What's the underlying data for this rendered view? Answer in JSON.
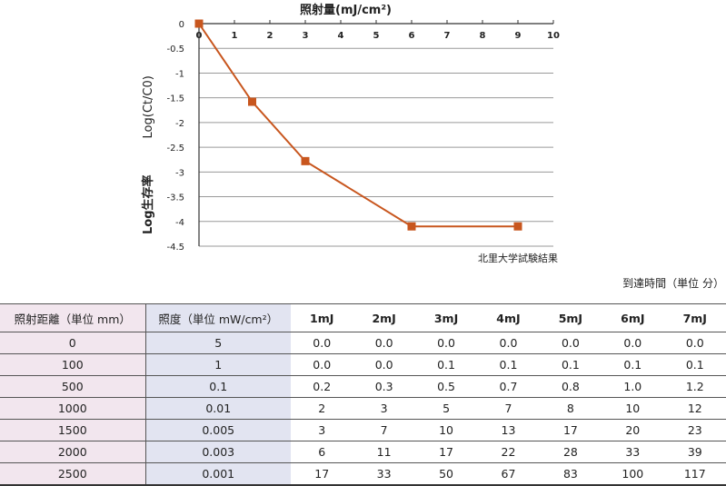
{
  "chart_data": {
    "type": "line",
    "title": "照射量(mJ/cm²)",
    "x_ticks": [
      "0",
      "1",
      "2",
      "3",
      "4",
      "5",
      "6",
      "7",
      "8",
      "9",
      "10"
    ],
    "y_ticks": [
      "0",
      "-0.5",
      "-1",
      "-1.5",
      "-2",
      "-2.5",
      "-3",
      "-3.5",
      "-4",
      "-4.5"
    ],
    "xlim": [
      0,
      10
    ],
    "ylim": [
      -4.5,
      0
    ],
    "x_axis_position": "top",
    "grid": "horizontal",
    "series": [
      {
        "color": "#c8561e",
        "marker": "square",
        "points": [
          [
            0,
            0
          ],
          [
            1.5,
            -1.58
          ],
          [
            3,
            -2.78
          ],
          [
            6,
            -4.1
          ],
          [
            9,
            -4.1
          ]
        ]
      }
    ],
    "ylabel_main": "Log(Ct/C0)",
    "ylabel_sub": "Log生存率",
    "source_note": "北里大学試験結果"
  },
  "table": {
    "unit_note": "到達時間（単位 分）",
    "headers": [
      "照射距離（単位 mm）",
      "照度（単位 mW/cm²）",
      "1mJ",
      "2mJ",
      "3mJ",
      "4mJ",
      "5mJ",
      "6mJ",
      "7mJ"
    ],
    "rows": [
      [
        "0",
        "5",
        "0.0",
        "0.0",
        "0.0",
        "0.0",
        "0.0",
        "0.0",
        "0.0"
      ],
      [
        "100",
        "1",
        "0.0",
        "0.0",
        "0.1",
        "0.1",
        "0.1",
        "0.1",
        "0.1"
      ],
      [
        "500",
        "0.1",
        "0.2",
        "0.3",
        "0.5",
        "0.7",
        "0.8",
        "1.0",
        "1.2"
      ],
      [
        "1000",
        "0.01",
        "2",
        "3",
        "5",
        "7",
        "8",
        "10",
        "12"
      ],
      [
        "1500",
        "0.005",
        "3",
        "7",
        "10",
        "13",
        "17",
        "20",
        "23"
      ],
      [
        "2000",
        "0.003",
        "6",
        "11",
        "17",
        "22",
        "28",
        "33",
        "39"
      ],
      [
        "2500",
        "0.001",
        "17",
        "33",
        "50",
        "67",
        "83",
        "100",
        "117"
      ]
    ]
  }
}
